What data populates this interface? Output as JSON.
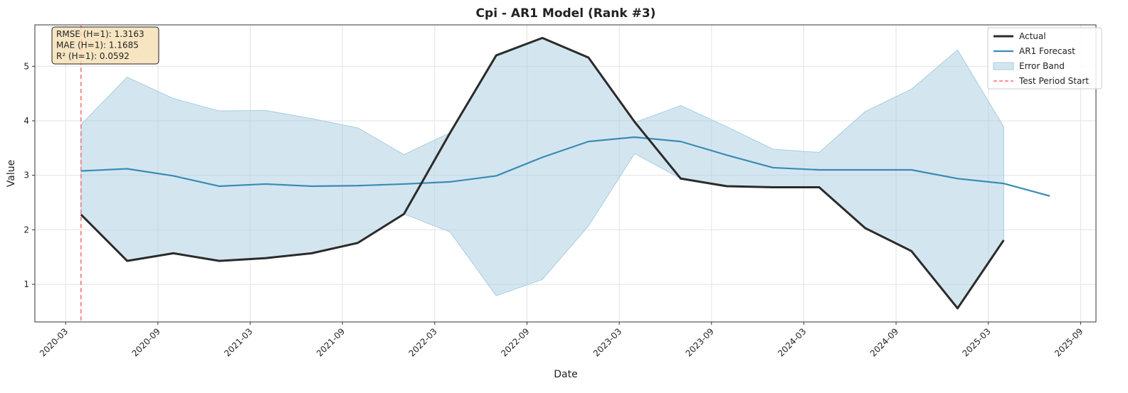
{
  "chart_data": {
    "type": "line",
    "title": "Cpi - AR1 Model (Rank #3)",
    "x_label": "Date",
    "y_label": "Value",
    "x": [
      "2020-03",
      "2020-06",
      "2020-09",
      "2020-12",
      "2021-03",
      "2021-06",
      "2021-09",
      "2021-12",
      "2022-03",
      "2022-06",
      "2022-09",
      "2022-12",
      "2023-03",
      "2023-06",
      "2023-09",
      "2023-12",
      "2024-03",
      "2024-06",
      "2024-09",
      "2024-12",
      "2025-03",
      "2025-06"
    ],
    "series": [
      {
        "name": "Actual",
        "color": "#2b2b2b",
        "values": [
          2.28,
          1.43,
          1.57,
          1.43,
          1.48,
          1.57,
          1.76,
          2.29,
          3.78,
          5.2,
          5.52,
          5.16,
          3.98,
          2.94,
          2.8,
          2.78,
          2.78,
          2.03,
          1.61,
          0.56,
          1.81,
          null
        ]
      },
      {
        "name": "AR1 Forecast",
        "color": "#3a8bb5",
        "values": [
          3.08,
          3.12,
          2.99,
          2.8,
          2.84,
          2.8,
          2.81,
          2.84,
          2.88,
          2.99,
          3.33,
          3.62,
          3.7,
          3.62,
          3.37,
          3.14,
          3.1,
          3.1,
          3.1,
          2.94,
          2.85,
          2.62
        ]
      }
    ],
    "band": {
      "name": "Error Band",
      "color": "#a8cde0",
      "upper": [
        3.93,
        4.8,
        4.41,
        4.18,
        4.19,
        4.04,
        3.87,
        3.38,
        3.78,
        5.2,
        5.52,
        5.16,
        3.97,
        4.28,
        3.89,
        3.48,
        3.42,
        4.17,
        4.58,
        5.3,
        3.89,
        null
      ],
      "lower": [
        2.28,
        1.43,
        1.57,
        1.43,
        1.48,
        1.57,
        1.76,
        2.29,
        1.96,
        0.79,
        1.09,
        2.07,
        3.4,
        2.94,
        2.8,
        2.78,
        2.78,
        2.03,
        1.61,
        0.56,
        1.81,
        null
      ]
    },
    "test_start": {
      "name": "Test Period Start",
      "x": "2020-03",
      "color": "#ff6b6b"
    },
    "annotations": [
      "RMSE (H=1): 1.3163",
      "MAE (H=1): 1.1685",
      "R² (H=1): 0.0592"
    ],
    "xlim": [
      "2020-01",
      "2025-10"
    ],
    "xticks": [
      "2020-03",
      "2020-09",
      "2021-03",
      "2021-09",
      "2022-03",
      "2022-09",
      "2023-03",
      "2023-09",
      "2024-03",
      "2024-09",
      "2025-03",
      "2025-09"
    ],
    "ylim": [
      0.31,
      5.76
    ],
    "yticks": [
      1,
      2,
      3,
      4,
      5
    ],
    "grid": true,
    "legend": "upper right"
  }
}
